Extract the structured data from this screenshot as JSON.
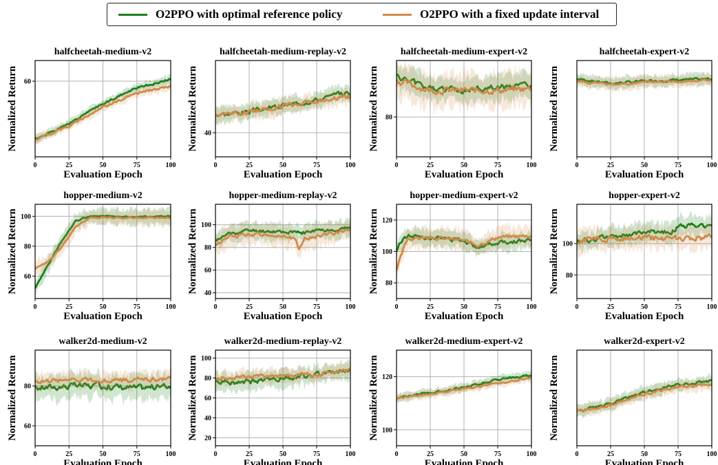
{
  "legend": {
    "series_a_label": "O2PPO with optimal reference policy",
    "series_b_label": "O2PPO with a fixed update interval"
  },
  "colors": {
    "series_a": "#1a7f1a",
    "series_b": "#d08a4a",
    "grid": "#b0b0b0"
  },
  "chart_data": [
    {
      "type": "line",
      "title": "halfcheetah-medium-v2",
      "xlabel": "Evaluation Epoch",
      "ylabel": "Normalized Return",
      "xlim": [
        0,
        100
      ],
      "ylim": [
        38,
        66
      ],
      "xticks": [
        0,
        25,
        50,
        75,
        100
      ],
      "yticks": [
        60
      ],
      "grid": true,
      "x": [
        0,
        25,
        50,
        75,
        100
      ],
      "series": [
        {
          "name": "O2PPO with optimal reference policy",
          "values": [
            43,
            47.5,
            53.5,
            58,
            60.5
          ],
          "noise": 0.5,
          "band": 1.2,
          "seed": 1
        },
        {
          "name": "O2PPO with a fixed update interval",
          "values": [
            43,
            47,
            52.5,
            56.5,
            58.5
          ],
          "noise": 0.5,
          "band": 1.2,
          "seed": 2
        }
      ]
    },
    {
      "type": "line",
      "title": "halfcheetah-medium-replay-v2",
      "xlabel": "Evaluation Epoch",
      "ylabel": "Normalized Return",
      "xlim": [
        0,
        100
      ],
      "ylim": [
        32,
        64
      ],
      "xticks": [
        0,
        25,
        50,
        75,
        100
      ],
      "yticks": [
        40
      ],
      "grid": true,
      "x": [
        0,
        25,
        50,
        75,
        100
      ],
      "series": [
        {
          "name": "O2PPO with optimal reference policy",
          "values": [
            46,
            47,
            49,
            51,
            53.5
          ],
          "noise": 1.3,
          "band": 2.5,
          "seed": 3
        },
        {
          "name": "O2PPO with a fixed update interval",
          "values": [
            46,
            47,
            49,
            50.5,
            52
          ],
          "noise": 1.3,
          "band": 2.5,
          "seed": 4
        }
      ]
    },
    {
      "type": "line",
      "title": "halfcheetah-medium-expert-v2",
      "xlabel": "Evaluation Epoch",
      "ylabel": "Normalized Return",
      "xlim": [
        0,
        100
      ],
      "ylim": [
        68,
        97
      ],
      "xticks": [
        0,
        25,
        50,
        75,
        100
      ],
      "yticks": [
        80
      ],
      "grid": true,
      "x": [
        0,
        25,
        50,
        75,
        100
      ],
      "series": [
        {
          "name": "O2PPO with optimal reference policy",
          "values": [
            92,
            88.5,
            88,
            89,
            89.5
          ],
          "noise": 1.6,
          "band": 3.5,
          "seed": 5
        },
        {
          "name": "O2PPO with a fixed update interval",
          "values": [
            91,
            88,
            88,
            88,
            88.5
          ],
          "noise": 1.6,
          "band": 5,
          "seed": 6
        }
      ]
    },
    {
      "type": "line",
      "title": "halfcheetah-expert-v2",
      "xlabel": "Evaluation Epoch",
      "ylabel": "Normalized Return",
      "xlim": [
        0,
        100
      ],
      "ylim": [
        60,
        102
      ],
      "xticks": [
        0,
        25,
        50,
        75,
        100
      ],
      "yticks": [],
      "grid": true,
      "x": [
        0,
        25,
        50,
        75,
        100
      ],
      "series": [
        {
          "name": "O2PPO with optimal reference policy",
          "values": [
            94,
            92,
            93,
            93.5,
            94
          ],
          "noise": 0.8,
          "band": 2.5,
          "seed": 7
        },
        {
          "name": "O2PPO with a fixed update interval",
          "values": [
            93,
            91.5,
            92.5,
            93,
            93.5
          ],
          "noise": 0.8,
          "band": 2.5,
          "seed": 8
        }
      ]
    },
    {
      "type": "line",
      "title": "hopper-medium-v2",
      "xlabel": "Evaluation Epoch",
      "ylabel": "Normalized Return",
      "xlim": [
        0,
        100
      ],
      "ylim": [
        45,
        108
      ],
      "xticks": [
        0,
        25,
        50,
        75,
        100
      ],
      "yticks": [
        60,
        80,
        100
      ],
      "grid": true,
      "x": [
        0,
        10,
        20,
        30,
        40,
        50,
        75,
        100
      ],
      "series": [
        {
          "name": "O2PPO with optimal reference policy",
          "values": [
            52,
            68,
            84,
            97,
            100,
            100,
            99.5,
            100
          ],
          "noise": 0.8,
          "band": 5,
          "seed": 9
        },
        {
          "name": "O2PPO with a fixed update interval",
          "values": [
            65,
            70,
            80,
            93,
            99,
            99,
            99,
            99
          ],
          "noise": 0.8,
          "band": 5,
          "seed": 10
        }
      ]
    },
    {
      "type": "line",
      "title": "hopper-medium-replay-v2",
      "xlabel": "Evaluation Epoch",
      "ylabel": "Normalized Return",
      "xlim": [
        0,
        100
      ],
      "ylim": [
        35,
        118
      ],
      "xticks": [
        0,
        25,
        50,
        75,
        100
      ],
      "yticks": [
        40,
        60,
        80,
        100
      ],
      "grid": true,
      "x": [
        0,
        10,
        25,
        50,
        58,
        62,
        66,
        75,
        100
      ],
      "series": [
        {
          "name": "O2PPO with optimal reference policy",
          "values": [
            86,
            92,
            95,
            94,
            93,
            93,
            93,
            95,
            97
          ],
          "noise": 2.5,
          "band": 7,
          "seed": 11
        },
        {
          "name": "O2PPO with a fixed update interval",
          "values": [
            82,
            89,
            92,
            90,
            88,
            79,
            88,
            90,
            96
          ],
          "noise": 2.5,
          "band": 9,
          "seed": 12
        }
      ]
    },
    {
      "type": "line",
      "title": "hopper-medium-expert-v2",
      "xlabel": "Evaluation Epoch",
      "ylabel": "Normalized Return",
      "xlim": [
        0,
        100
      ],
      "ylim": [
        70,
        130
      ],
      "xticks": [
        0,
        25,
        50,
        75,
        100
      ],
      "yticks": [
        80,
        100,
        120
      ],
      "grid": true,
      "x": [
        0,
        3,
        8,
        25,
        50,
        60,
        75,
        100
      ],
      "series": [
        {
          "name": "O2PPO with optimal reference policy",
          "values": [
            100,
            106,
            110,
            109,
            107,
            103,
            106,
            107
          ],
          "noise": 2.2,
          "band": 5,
          "seed": 13
        },
        {
          "name": "O2PPO with a fixed update interval",
          "values": [
            88,
            96,
            108,
            109,
            107,
            104,
            109,
            110
          ],
          "noise": 1.8,
          "band": 6,
          "seed": 14
        }
      ]
    },
    {
      "type": "line",
      "title": "hopper-expert-v2",
      "xlabel": "Evaluation Epoch",
      "ylabel": "Normalized Return",
      "xlim": [
        0,
        100
      ],
      "ylim": [
        65,
        125
      ],
      "xticks": [
        0,
        25,
        50,
        75,
        100
      ],
      "yticks": [
        80,
        100
      ],
      "grid": true,
      "x": [
        0,
        25,
        50,
        70,
        75,
        100
      ],
      "series": [
        {
          "name": "O2PPO with optimal reference policy",
          "values": [
            101,
            104,
            107,
            108,
            111,
            112
          ],
          "noise": 2.5,
          "band": 6,
          "seed": 15
        },
        {
          "name": "O2PPO with a fixed update interval",
          "values": [
            102,
            103,
            104,
            103,
            103,
            104
          ],
          "noise": 3,
          "band": 7,
          "seed": 16
        }
      ]
    },
    {
      "type": "line",
      "title": "walker2d-medium-v2",
      "xlabel": "Evaluation Epoch",
      "ylabel": "Normalized Return",
      "xlim": [
        0,
        100
      ],
      "ylim": [
        50,
        98
      ],
      "xticks": [
        0,
        25,
        50,
        75,
        100
      ],
      "yticks": [
        60,
        80
      ],
      "grid": true,
      "x": [
        0,
        25,
        50,
        75,
        100
      ],
      "series": [
        {
          "name": "O2PPO with optimal reference policy",
          "values": [
            79,
            80,
            80,
            79,
            80
          ],
          "noise": 2.5,
          "band": 6,
          "seed": 17
        },
        {
          "name": "O2PPO with a fixed update interval",
          "values": [
            82,
            83,
            83,
            83,
            84
          ],
          "noise": 1.8,
          "band": 4,
          "seed": 18
        }
      ]
    },
    {
      "type": "line",
      "title": "walker2d-medium-replay-v2",
      "xlabel": "Evaluation Epoch",
      "ylabel": "Normalized Return",
      "xlim": [
        0,
        100
      ],
      "ylim": [
        12,
        108
      ],
      "xticks": [
        0,
        25,
        50,
        75,
        100
      ],
      "yticks": [
        20,
        40,
        60,
        80,
        100
      ],
      "grid": true,
      "x": [
        0,
        25,
        50,
        75,
        100
      ],
      "series": [
        {
          "name": "O2PPO with optimal reference policy",
          "values": [
            76,
            76,
            80,
            83,
            88
          ],
          "noise": 4,
          "band": 9,
          "seed": 19
        },
        {
          "name": "O2PPO with a fixed update interval",
          "values": [
            80,
            81,
            82,
            84,
            89
          ],
          "noise": 3,
          "band": 7,
          "seed": 20
        }
      ]
    },
    {
      "type": "line",
      "title": "walker2d-medium-expert-v2",
      "xlabel": "Evaluation Epoch",
      "ylabel": "Normalized Return",
      "xlim": [
        0,
        100
      ],
      "ylim": [
        94,
        130
      ],
      "xticks": [
        0,
        25,
        50,
        75,
        100
      ],
      "yticks": [
        100,
        120
      ],
      "grid": true,
      "x": [
        0,
        25,
        50,
        75,
        100
      ],
      "series": [
        {
          "name": "O2PPO with optimal reference policy",
          "values": [
            112,
            114,
            116,
            119,
            120.5
          ],
          "noise": 0.6,
          "band": 1.5,
          "seed": 21
        },
        {
          "name": "O2PPO with a fixed update interval",
          "values": [
            112,
            113.5,
            115.5,
            117.5,
            119.5
          ],
          "noise": 0.5,
          "band": 1.5,
          "seed": 22
        }
      ]
    },
    {
      "type": "line",
      "title": "walker2d-expert-v2",
      "xlabel": "Evaluation Epoch",
      "ylabel": "Normalized Return",
      "xlim": [
        0,
        100
      ],
      "ylim": [
        100,
        125
      ],
      "xticks": [
        0,
        25,
        50,
        75,
        100
      ],
      "yticks": [],
      "grid": true,
      "x": [
        0,
        25,
        50,
        75,
        100
      ],
      "series": [
        {
          "name": "O2PPO with optimal reference policy",
          "values": [
            109,
            111,
            114,
            116,
            117
          ],
          "noise": 0.6,
          "band": 1.5,
          "seed": 23
        },
        {
          "name": "O2PPO with a fixed update interval",
          "values": [
            109,
            110.5,
            113.5,
            115.5,
            116
          ],
          "noise": 0.6,
          "band": 1.5,
          "seed": 24
        }
      ]
    }
  ]
}
